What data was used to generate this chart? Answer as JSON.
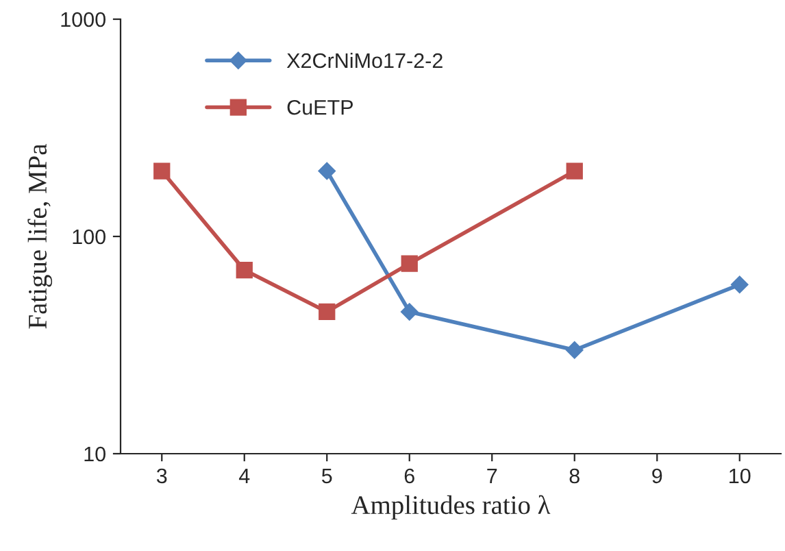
{
  "chart_data": {
    "type": "line",
    "xlabel": "Amplitudes ratio λ",
    "ylabel": "Fatigue life, MPa",
    "log": "y",
    "xlim": [
      2.5,
      10.5
    ],
    "xticks": [
      3,
      4,
      5,
      6,
      7,
      8,
      9,
      10
    ],
    "ylim": [
      10,
      1000
    ],
    "yticks": [
      10,
      100,
      1000
    ],
    "grid": false,
    "legend": "top left",
    "series": [
      {
        "name": "X2CrNiMo17-2-2",
        "color": "#4f81bd",
        "marker": "diamond",
        "x": [
          5,
          6,
          8,
          10
        ],
        "values": [
          200,
          45,
          30,
          60
        ]
      },
      {
        "name": "CuETP",
        "color": "#c0504d",
        "marker": "square",
        "x": [
          3,
          4,
          5,
          6,
          8
        ],
        "values": [
          200,
          70,
          45,
          75,
          200
        ]
      }
    ]
  }
}
